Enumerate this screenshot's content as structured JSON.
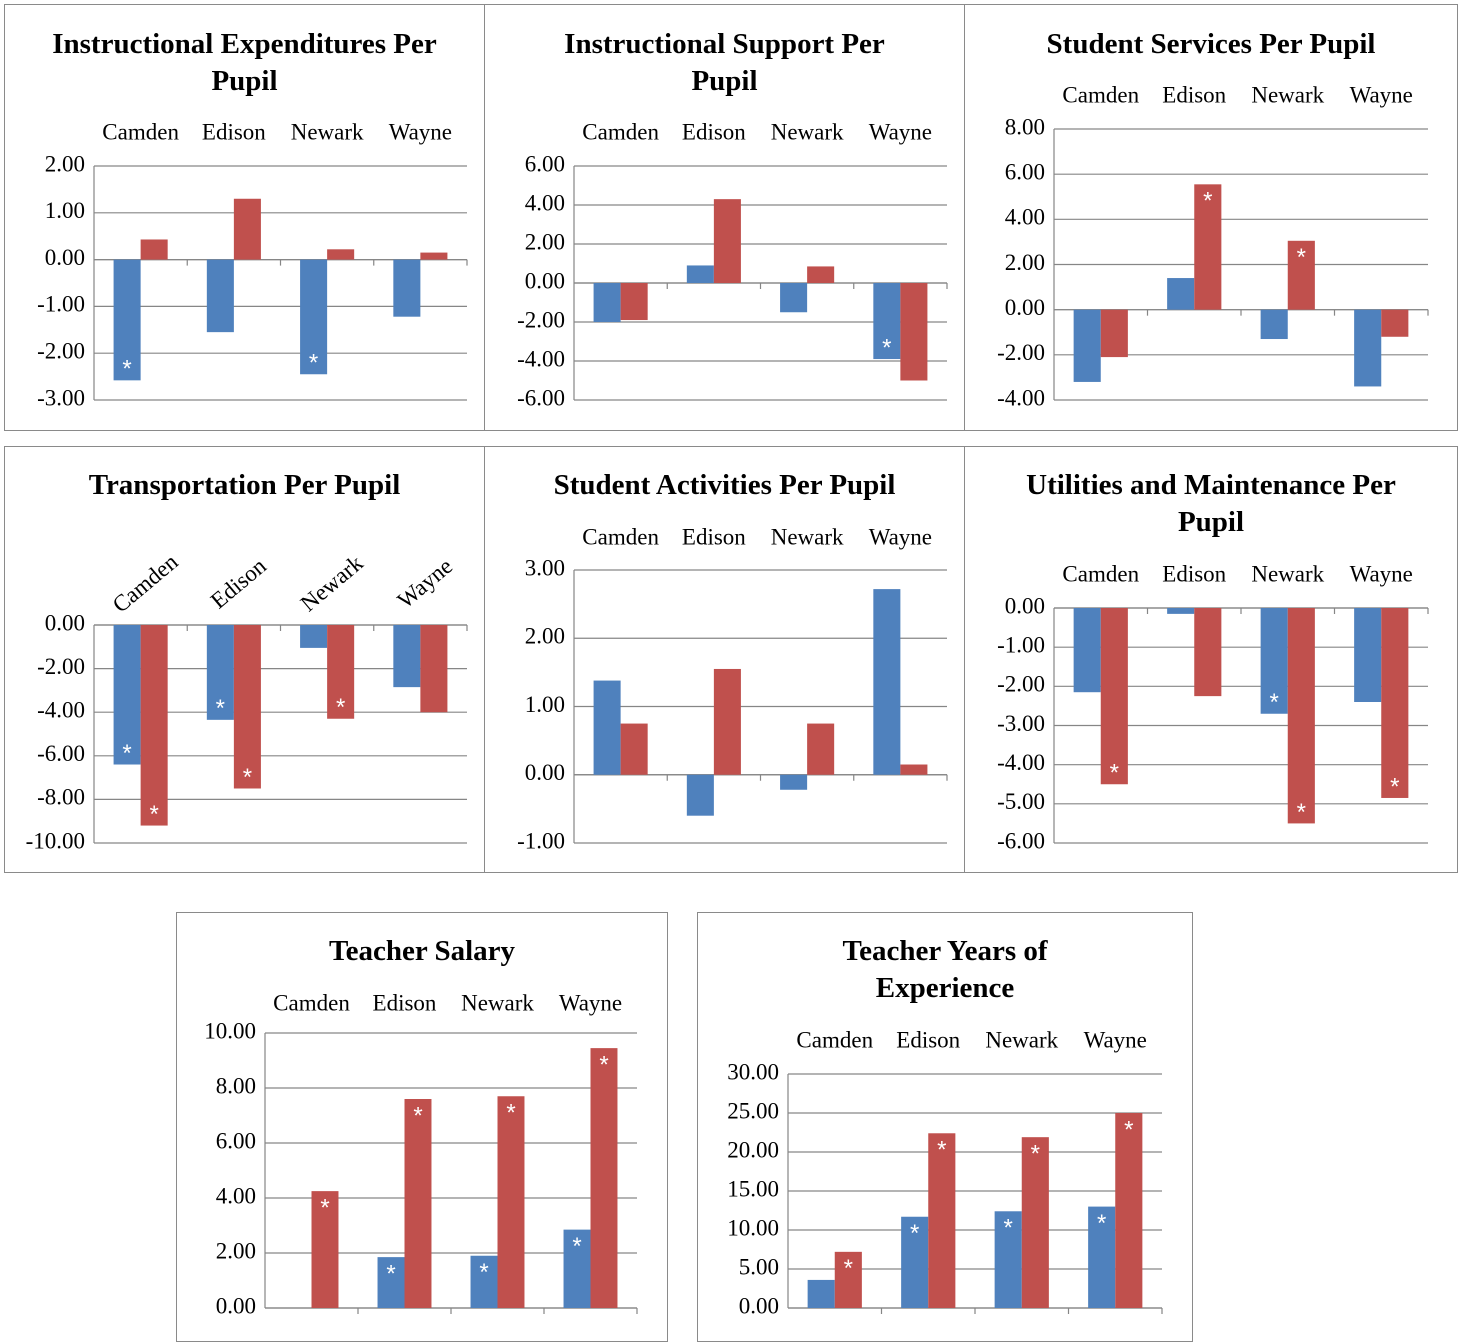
{
  "chart_data": [
    {
      "type": "bar",
      "title": "Instructional Expenditures Per Pupil",
      "categories": [
        "Camden",
        "Edison",
        "Newark",
        "Wayne"
      ],
      "series": [
        {
          "color": "#4f81bd",
          "values": [
            -2.58,
            -1.55,
            -2.45,
            -1.22
          ],
          "marks": [
            "*",
            null,
            "*",
            null
          ]
        },
        {
          "color": "#c0504d",
          "values": [
            0.43,
            1.3,
            0.22,
            0.15
          ],
          "marks": [
            null,
            null,
            null,
            null
          ]
        }
      ],
      "ylim": [
        -3,
        2
      ],
      "yticks": [
        {
          "value": -3,
          "label": "-3.00"
        },
        {
          "value": -2,
          "label": "-2.00"
        },
        {
          "value": -1,
          "label": "-1.00"
        },
        {
          "value": 0,
          "label": "0.00"
        },
        {
          "value": 1,
          "label": "1.00"
        },
        {
          "value": 2,
          "label": "2.00"
        }
      ],
      "grid": true
    },
    {
      "type": "bar",
      "title": "Instructional Support Per Pupil",
      "categories": [
        "Camden",
        "Edison",
        "Newark",
        "Wayne"
      ],
      "series": [
        {
          "color": "#4f81bd",
          "values": [
            -2.0,
            0.9,
            -1.5,
            -3.9
          ],
          "marks": [
            null,
            null,
            null,
            "*"
          ]
        },
        {
          "color": "#c0504d",
          "values": [
            -1.9,
            4.3,
            0.85,
            -5.0
          ],
          "marks": [
            null,
            null,
            null,
            null
          ]
        }
      ],
      "ylim": [
        -6,
        6
      ],
      "yticks": [
        {
          "value": -6,
          "label": "-6.00"
        },
        {
          "value": -4,
          "label": "-4.00"
        },
        {
          "value": -2,
          "label": "-2.00"
        },
        {
          "value": 0,
          "label": "0.00"
        },
        {
          "value": 2,
          "label": "2.00"
        },
        {
          "value": 4,
          "label": "4.00"
        },
        {
          "value": 6,
          "label": "6.00"
        }
      ],
      "grid": true
    },
    {
      "type": "bar",
      "title": "Student Services Per Pupil",
      "categories": [
        "Camden",
        "Edison",
        "Newark",
        "Wayne"
      ],
      "series": [
        {
          "color": "#4f81bd",
          "values": [
            -3.2,
            1.4,
            -1.3,
            -3.4
          ],
          "marks": [
            null,
            null,
            null,
            null
          ]
        },
        {
          "color": "#c0504d",
          "values": [
            -2.1,
            5.55,
            3.05,
            -1.2
          ],
          "marks": [
            null,
            "*",
            "*",
            null
          ]
        }
      ],
      "ylim": [
        -4,
        8
      ],
      "yticks": [
        {
          "value": -4,
          "label": "-4.00"
        },
        {
          "value": -2,
          "label": "-2.00"
        },
        {
          "value": 0,
          "label": "0.00"
        },
        {
          "value": 2,
          "label": "2.00"
        },
        {
          "value": 4,
          "label": "4.00"
        },
        {
          "value": 6,
          "label": "6.00"
        },
        {
          "value": 8,
          "label": "8.00"
        }
      ],
      "grid": true
    },
    {
      "type": "bar",
      "title": "Transportation Per Pupil",
      "categories": [
        "Camden",
        "Edison",
        "Newark",
        "Wayne"
      ],
      "series": [
        {
          "color": "#4f81bd",
          "values": [
            -6.4,
            -4.35,
            -1.05,
            -2.85
          ],
          "marks": [
            "*",
            "*",
            null,
            null
          ]
        },
        {
          "color": "#c0504d",
          "values": [
            -9.2,
            -7.5,
            -4.3,
            -4.0
          ],
          "marks": [
            "*",
            "*",
            "*",
            null
          ]
        }
      ],
      "ylim": [
        -10,
        0
      ],
      "yticks": [
        {
          "value": -10,
          "label": "-10.00"
        },
        {
          "value": -8,
          "label": "-8.00"
        },
        {
          "value": -6,
          "label": "-6.00"
        },
        {
          "value": -4,
          "label": "-4.00"
        },
        {
          "value": -2,
          "label": "-2.00"
        },
        {
          "value": 0,
          "label": "0.00"
        }
      ],
      "grid": true
    },
    {
      "type": "bar",
      "title": "Student Activities Per Pupil",
      "categories": [
        "Camden",
        "Edison",
        "Newark",
        "Wayne"
      ],
      "series": [
        {
          "color": "#4f81bd",
          "values": [
            1.38,
            -0.6,
            -0.22,
            2.72
          ],
          "marks": [
            null,
            null,
            null,
            null
          ]
        },
        {
          "color": "#c0504d",
          "values": [
            0.75,
            1.55,
            0.75,
            0.15
          ],
          "marks": [
            null,
            null,
            null,
            null
          ]
        }
      ],
      "ylim": [
        -1,
        3
      ],
      "yticks": [
        {
          "value": -1,
          "label": "-1.00"
        },
        {
          "value": 0,
          "label": "0.00"
        },
        {
          "value": 1,
          "label": "1.00"
        },
        {
          "value": 2,
          "label": "2.00"
        },
        {
          "value": 3,
          "label": "3.00"
        }
      ],
      "grid": true
    },
    {
      "type": "bar",
      "title": "Utilities and Maintenance Per Pupil",
      "categories": [
        "Camden",
        "Edison",
        "Newark",
        "Wayne"
      ],
      "series": [
        {
          "color": "#4f81bd",
          "values": [
            -2.15,
            -0.15,
            -2.7,
            -2.4
          ],
          "marks": [
            null,
            null,
            "*",
            null
          ]
        },
        {
          "color": "#c0504d",
          "values": [
            -4.5,
            -2.25,
            -5.5,
            -4.85
          ],
          "marks": [
            "*",
            null,
            "*",
            "*"
          ]
        }
      ],
      "ylim": [
        -6,
        0
      ],
      "yticks": [
        {
          "value": -6,
          "label": "-6.00"
        },
        {
          "value": -5,
          "label": "-5.00"
        },
        {
          "value": -4,
          "label": "-4.00"
        },
        {
          "value": -3,
          "label": "-3.00"
        },
        {
          "value": -2,
          "label": "-2.00"
        },
        {
          "value": -1,
          "label": "-1.00"
        },
        {
          "value": 0,
          "label": "0.00"
        }
      ],
      "grid": true
    },
    {
      "type": "bar",
      "title": "Teacher Salary",
      "categories": [
        "Camden",
        "Edison",
        "Newark",
        "Wayne"
      ],
      "series": [
        {
          "color": "#4f81bd",
          "values": [
            0,
            1.85,
            1.9,
            2.85
          ],
          "marks": [
            null,
            "*",
            "*",
            "*"
          ]
        },
        {
          "color": "#c0504d",
          "values": [
            4.25,
            7.6,
            7.7,
            9.45
          ],
          "marks": [
            "*",
            "*",
            "*",
            "*"
          ]
        }
      ],
      "ylim": [
        0,
        10
      ],
      "yticks": [
        {
          "value": 0,
          "label": "0.00"
        },
        {
          "value": 2,
          "label": "2.00"
        },
        {
          "value": 4,
          "label": "4.00"
        },
        {
          "value": 6,
          "label": "6.00"
        },
        {
          "value": 8,
          "label": "8.00"
        },
        {
          "value": 10,
          "label": "10.00"
        }
      ],
      "grid": true
    },
    {
      "type": "bar",
      "title": "Teacher Years of Experience",
      "categories": [
        "Camden",
        "Edison",
        "Newark",
        "Wayne"
      ],
      "series": [
        {
          "color": "#4f81bd",
          "values": [
            3.6,
            11.7,
            12.4,
            13.0
          ],
          "marks": [
            null,
            "*",
            "*",
            "*"
          ]
        },
        {
          "color": "#c0504d",
          "values": [
            7.2,
            22.4,
            21.9,
            25.0
          ],
          "marks": [
            "*",
            "*",
            "*",
            "*"
          ]
        }
      ],
      "ylim": [
        0,
        30
      ],
      "yticks": [
        {
          "value": 0,
          "label": "0.00"
        },
        {
          "value": 5,
          "label": "5.00"
        },
        {
          "value": 10,
          "label": "10.00"
        },
        {
          "value": 15,
          "label": "15.00"
        },
        {
          "value": 20,
          "label": "20.00"
        },
        {
          "value": 25,
          "label": "25.00"
        },
        {
          "value": 30,
          "label": "30.00"
        }
      ],
      "grid": true
    }
  ]
}
